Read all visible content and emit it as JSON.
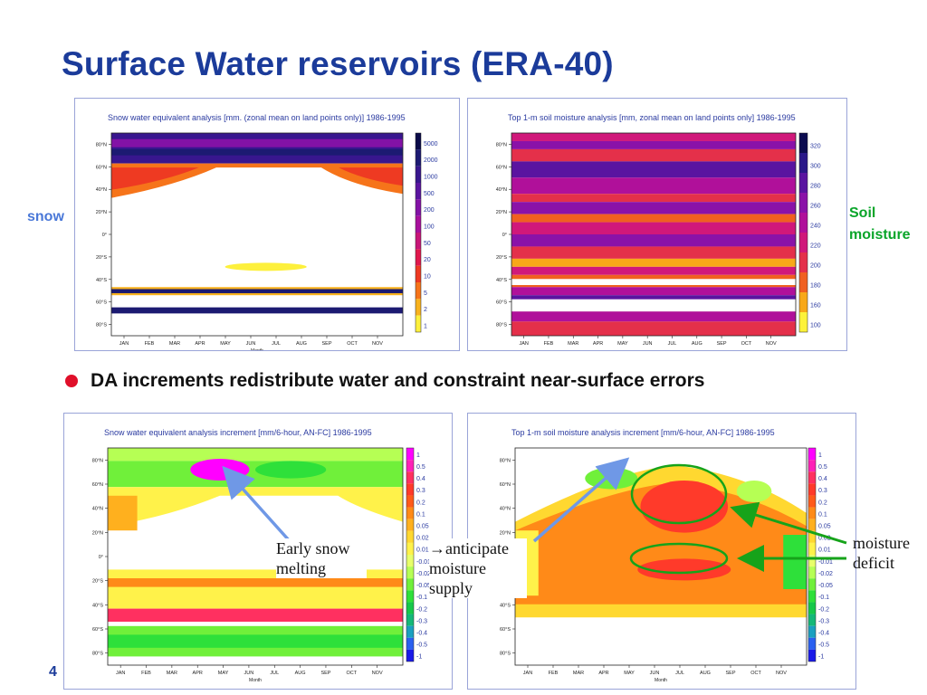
{
  "slide": {
    "title": "Surface Water reservoirs (ERA-40)",
    "side_label_snow": "snow",
    "side_label_soil": "Soil moisture",
    "bullet": "DA increments redistribute water and constraint near-surface errors",
    "annotation_snow": "Early snow melting",
    "annotation_moisture_supply": "→anticipate moisture supply",
    "annotation_deficit": "moisture deficit",
    "page_marker": "4"
  },
  "colors": {
    "title": "#1b3b9a",
    "bullet": "#e0102a",
    "snow_label": "#4a78d8",
    "soil_label": "#0aa52a",
    "arrow_blue": "#6f98e6",
    "arrow_green": "#16a31a"
  },
  "chart_data": [
    {
      "type": "heatmap",
      "title": "Snow water equivalent analysis [mm. (zonal mean on land points only)] 1986-1995",
      "xlabel": "Month",
      "x_ticks": [
        "JAN",
        "FEB",
        "MAR",
        "APR",
        "MAY",
        "JUN",
        "JUL",
        "AUG",
        "SEP",
        "OCT",
        "NOV"
      ],
      "y_ticks": [
        "80°N",
        "60°N",
        "40°N",
        "20°N",
        "0°",
        "20°S",
        "40°S",
        "60°S",
        "80°S"
      ],
      "colorbar": [
        "5000",
        "2000",
        "1000",
        "500",
        "200",
        "100",
        "50",
        "20",
        "10",
        "5",
        "2",
        "1"
      ],
      "colorbar_colors": [
        "#0a0a48",
        "#1c1a72",
        "#38168e",
        "#5a14a0",
        "#8312a6",
        "#a8109c",
        "#c81678",
        "#e0184c",
        "#ee3a22",
        "#f6741a",
        "#f8b21e",
        "#fdf03c"
      ]
    },
    {
      "type": "heatmap",
      "title": "Top 1-m soil moisture analysis [mm, zonal mean on land points only] 1986-1995",
      "xlabel": "",
      "x_ticks": [
        "JAN",
        "FEB",
        "MAR",
        "APR",
        "MAY",
        "JUN",
        "JUL",
        "AUG",
        "SEP",
        "OCT",
        "NOV"
      ],
      "y_ticks": [
        "80°N",
        "60°N",
        "40°N",
        "20°N",
        "0°",
        "20°S",
        "40°S",
        "60°S",
        "80°S"
      ],
      "colorbar": [
        "320",
        "300",
        "280",
        "260",
        "240",
        "220",
        "200",
        "180",
        "160",
        "100"
      ],
      "colorbar_colors": [
        "#0c0c50",
        "#2a1888",
        "#5a14a0",
        "#8a12a8",
        "#b0109a",
        "#d0187a",
        "#e4304a",
        "#f06020",
        "#f8a818",
        "#fdf23a"
      ]
    },
    {
      "type": "heatmap",
      "title": "Snow water equivalent analysis increment [mm/6-hour, AN-FC] 1986-1995",
      "xlabel": "Month",
      "x_ticks": [
        "JAN",
        "FEB",
        "MAR",
        "APR",
        "MAY",
        "JUN",
        "JUL",
        "AUG",
        "SEP",
        "OCT",
        "NOV"
      ],
      "y_ticks": [
        "80°N",
        "60°N",
        "40°N",
        "20°N",
        "0°",
        "20°S",
        "40°S",
        "60°S",
        "80°S"
      ],
      "colorbar": [
        "1",
        "0.5",
        "0.4",
        "0.3",
        "0.2",
        "0.1",
        "0.05",
        "0.02",
        "0.01",
        "-0.01",
        "-0.02",
        "-0.05",
        "-0.1",
        "-0.2",
        "-0.3",
        "-0.4",
        "-0.5",
        "-1"
      ],
      "colorbar_colors": [
        "#ff00ff",
        "#ff22b8",
        "#ff3060",
        "#ff3a2a",
        "#ff5a1a",
        "#ff8a18",
        "#ffb01e",
        "#ffd830",
        "#fff24a",
        "#e8ff6a",
        "#b6ff54",
        "#70f03a",
        "#2ee03a",
        "#16c84a",
        "#14b878",
        "#1aa0c0",
        "#2a60f0",
        "#1a1ae8"
      ]
    },
    {
      "type": "heatmap",
      "title": "Top 1-m soil moisture analysis increment [mm/6-hour, AN-FC] 1986-1995",
      "xlabel": "Month",
      "x_ticks": [
        "JAN",
        "FEB",
        "MAR",
        "APR",
        "MAY",
        "JUN",
        "JUL",
        "AUG",
        "SEP",
        "OCT",
        "NOV"
      ],
      "y_ticks": [
        "80°N",
        "60°N",
        "40°N",
        "20°N",
        "0°",
        "20°S",
        "40°S",
        "60°S",
        "80°S"
      ],
      "colorbar": [
        "1",
        "0.5",
        "0.4",
        "0.3",
        "0.2",
        "0.1",
        "0.05",
        "0.02",
        "0.01",
        "-0.01",
        "-0.02",
        "-0.05",
        "-0.1",
        "-0.2",
        "-0.3",
        "-0.4",
        "-0.5",
        "-1"
      ],
      "colorbar_colors": [
        "#ff00ff",
        "#ff22b8",
        "#ff3060",
        "#ff3a2a",
        "#ff5a1a",
        "#ff8a18",
        "#ffb01e",
        "#ffd830",
        "#fff24a",
        "#e8ff6a",
        "#b6ff54",
        "#70f03a",
        "#2ee03a",
        "#16c84a",
        "#14b878",
        "#1aa0c0",
        "#2a60f0",
        "#1a1ae8"
      ]
    }
  ]
}
